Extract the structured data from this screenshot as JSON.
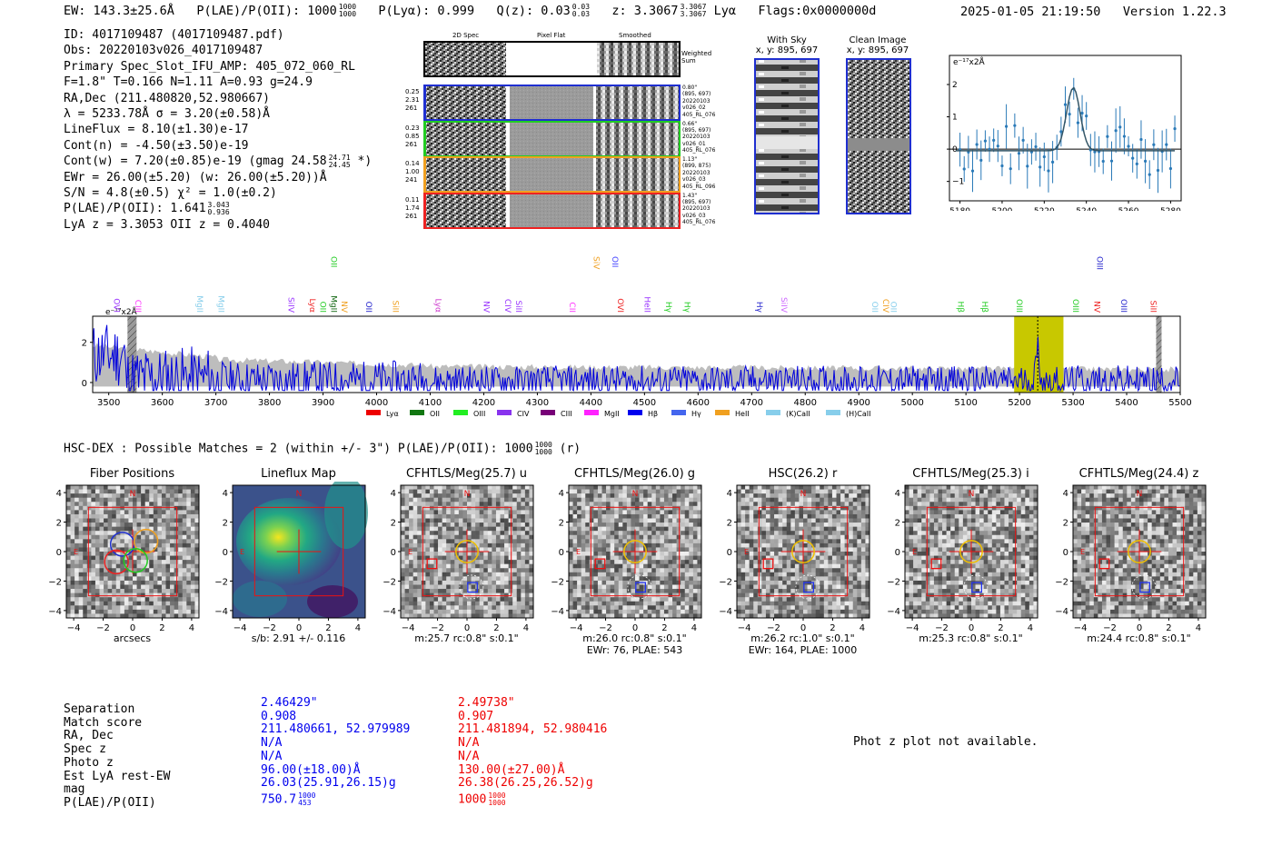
{
  "header": {
    "ew": "EW: 143.3±25.6Å",
    "plae": "P(LAE)/P(OII): 1000",
    "plae_hi": "1000",
    "plae_lo": "1000",
    "plya": "P(Lyα): 0.999",
    "qz": "Q(z): 0.03",
    "qz_hi": "0.03",
    "qz_lo": "0.03",
    "z": "z: 3.3067",
    "z_hi": "3.3067",
    "z_lo": "3.3067",
    "z_line": "Lyα",
    "flags": "Flags:0x0000000d",
    "timestamp": "2025-01-05 21:19:50",
    "version": "Version 1.22.3"
  },
  "info": {
    "id": "ID: 4017109487 (4017109487.pdf)",
    "obs": "Obs: 20220103v026_4017109487",
    "primary": "Primary Spec_Slot_IFU_AMP: 405_072_060_RL",
    "params": "F=1.8\"  T=0.166  N=1.11  A=0.93  g=24.9",
    "radec": "RA,Dec (211.480820,52.980667)",
    "lambda": "λ = 5233.78Å  σ = 3.20(±0.58)Å",
    "lineflux": "LineFlux = 8.10(±1.30)e-17",
    "contn": "Cont(n) = -4.50(±3.50)e-19",
    "contw": "Cont(w) = 7.20(±0.85)e-19 (gmag 24.58",
    "contw_hi": "24.71",
    "contw_lo": "24.45",
    "contw_end": "*)",
    "ewr": "EWr = 26.00(±5.20) (w: 26.00(±5.20))Å",
    "sn": "S/N = 4.8(±0.5)  χ² = 1.0(±0.2)",
    "plae": "P(LAE)/P(OII): 1.641",
    "plae_hi": "3.043",
    "plae_lo": "0.936",
    "lyaz": "LyA z = 3.3053  OII z = 0.4040"
  },
  "cutouts": {
    "col_2d": "2D Spec",
    "col_flat": "Pixel Flat",
    "col_smooth": "Smoothed",
    "weighted": "Weighted Sum",
    "rows": [
      {
        "left": [
          "0.25",
          "2.31",
          "261"
        ],
        "right": [
          "0.80\"",
          "(895, 697)",
          "20220103",
          "v026_02",
          "405_RL_076"
        ],
        "color": "#1f2fd0"
      },
      {
        "left": [
          "0.23",
          "0.85",
          "261"
        ],
        "right": [
          "0.66\"",
          "(895, 697)",
          "20220103",
          "v026_01",
          "405_RL_076"
        ],
        "color": "#22cc22"
      },
      {
        "left": [
          "0.14",
          "1.00",
          "241"
        ],
        "right": [
          "1.13\"",
          "(899, 875)",
          "20220103",
          "v026_03",
          "405_RL_096"
        ],
        "color": "#f0a020"
      },
      {
        "left": [
          "0.11",
          "1.74",
          "261"
        ],
        "right": [
          "1.43\"",
          "(895, 697)",
          "20220103",
          "v026_03",
          "405_RL_076"
        ],
        "color": "#ee2222"
      }
    ]
  },
  "sky": {
    "with_sky": "With Sky",
    "with_sky_xy": "x, y: 895, 697",
    "clean": "Clean Image",
    "clean_xy": "x, y: 895, 697"
  },
  "zoom_plot": {
    "ylabel": "e⁻¹⁷x2Å",
    "xticks": [
      "5180",
      "5200",
      "5220",
      "5240",
      "5260",
      "5280"
    ],
    "yticks": [
      "2",
      "1",
      "0",
      "−1"
    ]
  },
  "full_spectrum": {
    "ylabel": "e⁻¹⁷x2Å",
    "yticks": [
      "2",
      "0"
    ],
    "xticks": [
      "3500",
      "3600",
      "3700",
      "3800",
      "3900",
      "4000",
      "4100",
      "4200",
      "4300",
      "4400",
      "4500",
      "4600",
      "4700",
      "4800",
      "4900",
      "5000",
      "5100",
      "5200",
      "5300",
      "5400",
      "5500"
    ],
    "lines_top": [
      {
        "label": "OII",
        "color": "#22cc22"
      },
      {
        "label": "SiV",
        "color": "#f0a020"
      },
      {
        "label": "OII",
        "color": "#4040ff"
      },
      {
        "label": "OIII",
        "color": "#2222cc"
      }
    ],
    "lines": [
      {
        "label": "OVI",
        "color": "#9933ff"
      },
      {
        "label": "CIII",
        "color": "#ff33ff"
      },
      {
        "label": "MgII",
        "color": "#87ceeb"
      },
      {
        "label": "MgII",
        "color": "#87ceeb"
      },
      {
        "label": "SiIV",
        "color": "#9933ff"
      },
      {
        "label": "Lyα",
        "color": "#ee2222"
      },
      {
        "label": "OII",
        "color": "#22cc22"
      },
      {
        "label": "MgII",
        "color": "#116611"
      },
      {
        "label": "NV",
        "color": "#f0a020"
      },
      {
        "label": "OII",
        "color": "#2222cc"
      },
      {
        "label": "SiII",
        "color": "#f0a020"
      },
      {
        "label": "Lyα",
        "color": "#cc33cc"
      },
      {
        "label": "NV",
        "color": "#9933ff"
      },
      {
        "label": "CIV",
        "color": "#9933ff"
      },
      {
        "label": "SiII",
        "color": "#9933ff"
      },
      {
        "label": "CII",
        "color": "#ff33ff"
      },
      {
        "label": "OVI",
        "color": "#ee2222"
      },
      {
        "label": "HeII",
        "color": "#9933ff"
      },
      {
        "label": "Hγ",
        "color": "#22cc22"
      },
      {
        "label": "Hγ",
        "color": "#22cc22"
      },
      {
        "label": "Hγ",
        "color": "#2222cc"
      },
      {
        "label": "SiIV",
        "color": "#cc66ff"
      },
      {
        "label": "OII",
        "color": "#87ceeb"
      },
      {
        "label": "CIV",
        "color": "#f0a020"
      },
      {
        "label": "OII",
        "color": "#87ceeb"
      },
      {
        "label": "Hβ",
        "color": "#22cc22"
      },
      {
        "label": "Hβ",
        "color": "#22cc22"
      },
      {
        "label": "OIII",
        "color": "#22cc22"
      },
      {
        "label": "OIII",
        "color": "#22cc22"
      },
      {
        "label": "NV",
        "color": "#ee2222"
      },
      {
        "label": "OIII",
        "color": "#2222cc"
      },
      {
        "label": "SiII",
        "color": "#ee2222"
      }
    ],
    "legend": [
      {
        "label": "Lyα",
        "color": "#ee0000"
      },
      {
        "label": "OII",
        "color": "#117711"
      },
      {
        "label": "OIII",
        "color": "#22ee22"
      },
      {
        "label": "CIV",
        "color": "#8833ee"
      },
      {
        "label": "CIII",
        "color": "#770077"
      },
      {
        "label": "MgII",
        "color": "#ff22ff"
      },
      {
        "label": "Hβ",
        "color": "#0000ee"
      },
      {
        "label": "Hγ",
        "color": "#4466ee"
      },
      {
        "label": "HeII",
        "color": "#f0a020"
      },
      {
        "label": "(K)CaII",
        "color": "#87ceeb"
      },
      {
        "label": "(H)CaII",
        "color": "#87ceeb"
      }
    ]
  },
  "hsc": {
    "title": "HSC-DEX : Possible Matches = 2 (within +/- 3\")  P(LAE)/P(OII): 1000",
    "frac_hi": "1000",
    "frac_lo": "1000",
    "title_end": "(r)",
    "panels": [
      {
        "title": "Fiber Positions",
        "caption": "arcsecs",
        "caption2": ""
      },
      {
        "title": "Lineflux Map",
        "caption": "s/b: 2.91 +/- 0.116",
        "caption2": ""
      },
      {
        "title": "CFHTLS/Meg(25.7) u",
        "caption": "m:25.7 rc:0.8\"  s:0.1\"",
        "caption2": ""
      },
      {
        "title": "CFHTLS/Meg(26.0) g",
        "caption": "m:26.0 rc:0.8\"  s:0.1\"",
        "caption2": "EWr: 76, PLAE: 543"
      },
      {
        "title": "HSC(26.2) r",
        "caption": "m:26.2 rc:1.0\"  s:0.1\"",
        "caption2": "EWr: 164, PLAE: 1000"
      },
      {
        "title": "CFHTLS/Meg(25.3) i",
        "caption": "m:25.3 rc:0.8\"  s:0.1\"",
        "caption2": ""
      },
      {
        "title": "CFHTLS/Meg(24.4) z",
        "caption": "m:24.4 rc:0.8\"  s:0.1\"",
        "caption2": ""
      }
    ],
    "axis_ticks": [
      "4",
      "2",
      "0",
      "−2",
      "−4"
    ],
    "x_ticks": [
      "−4",
      "−2",
      "0",
      "2",
      "4"
    ],
    "north": "N",
    "east": "E"
  },
  "match_table": {
    "labels": [
      "Separation",
      "Match score",
      "RA, Dec",
      "Spec z",
      "Photo z",
      "Est LyA rest-EW",
      "mag",
      "P(LAE)/P(OII)"
    ],
    "blue": [
      "2.46429\"",
      "0.908",
      "211.480661, 52.979989",
      "N/A",
      "N/A",
      "96.00(±18.00)Å",
      "26.03(25.91,26.15)g",
      "750.7"
    ],
    "blue_frac_hi": "1000",
    "blue_frac_lo": "453",
    "red": [
      "2.49738\"",
      "0.907",
      "211.481894, 52.980416",
      "N/A",
      "N/A",
      "130.00(±27.00)Å",
      "26.38(26.25,26.52)g",
      "1000"
    ],
    "red_frac_hi": "1000",
    "red_frac_lo": "1000",
    "photz_note": "Phot z plot not available."
  }
}
